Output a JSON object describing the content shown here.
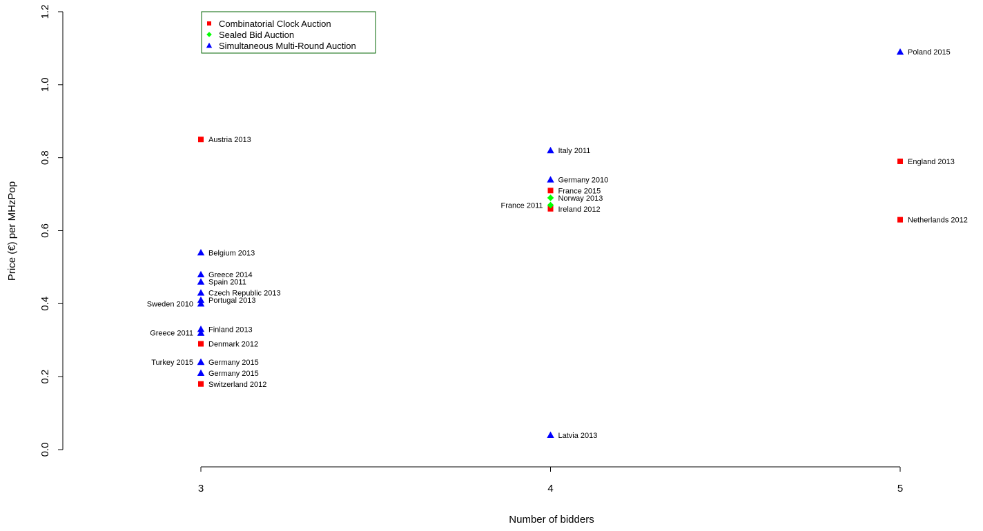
{
  "chart_data": {
    "type": "scatter",
    "xlabel": "Number of bidders",
    "ylabel": "Price (€) per MHzPop",
    "xlim": [
      3,
      5
    ],
    "ylim": [
      0,
      1.2
    ],
    "x_ticks": [
      "3",
      "4",
      "5"
    ],
    "y_ticks": [
      "0.0",
      "0.2",
      "0.4",
      "0.6",
      "0.8",
      "1.0",
      "1.2"
    ],
    "grid": false,
    "legend_position": "top-left",
    "series": [
      {
        "name": "Combinatorial Clock Auction",
        "marker": "square",
        "color": "#ff0000",
        "points": [
          {
            "x": 3,
            "y": 0.85,
            "label": "Austria 2013",
            "label_side": "right"
          },
          {
            "x": 3,
            "y": 0.29,
            "label": "Denmark 2012",
            "label_side": "right"
          },
          {
            "x": 3,
            "y": 0.18,
            "label": "Switzerland 2012",
            "label_side": "right"
          },
          {
            "x": 4,
            "y": 0.71,
            "label": "France 2015",
            "label_side": "right"
          },
          {
            "x": 4,
            "y": 0.66,
            "label": "Ireland 2012",
            "label_side": "right"
          },
          {
            "x": 5,
            "y": 0.79,
            "label": "England 2013",
            "label_side": "right"
          },
          {
            "x": 5,
            "y": 0.63,
            "label": "Netherlands 2012",
            "label_side": "right"
          }
        ]
      },
      {
        "name": "Sealed Bid Auction",
        "marker": "diamond",
        "color": "#00ff00",
        "points": [
          {
            "x": 4,
            "y": 0.69,
            "label": "Norway 2013",
            "label_side": "right"
          },
          {
            "x": 4,
            "y": 0.67,
            "label": "France 2011",
            "label_side": "left"
          }
        ]
      },
      {
        "name": "Simultaneous Multi-Round Auction",
        "marker": "triangle",
        "color": "#0000ff",
        "points": [
          {
            "x": 3,
            "y": 0.54,
            "label": "Belgium 2013",
            "label_side": "right"
          },
          {
            "x": 3,
            "y": 0.48,
            "label": "Greece 2014",
            "label_side": "right"
          },
          {
            "x": 3,
            "y": 0.46,
            "label": "Spain 2011",
            "label_side": "right"
          },
          {
            "x": 3,
            "y": 0.43,
            "label": "Czech Republic 2013",
            "label_side": "right"
          },
          {
            "x": 3,
            "y": 0.41,
            "label": "Portugal 2013",
            "label_side": "right"
          },
          {
            "x": 3,
            "y": 0.4,
            "label": "Sweden 2010",
            "label_side": "left"
          },
          {
            "x": 3,
            "y": 0.33,
            "label": "Finland 2013",
            "label_side": "right"
          },
          {
            "x": 3,
            "y": 0.32,
            "label": "Greece 2011",
            "label_side": "left"
          },
          {
            "x": 3,
            "y": 0.24,
            "label": "Germany 2015",
            "label_side": "right"
          },
          {
            "x": 3,
            "y": 0.24,
            "label": "Turkey 2015",
            "label_side": "left"
          },
          {
            "x": 3,
            "y": 0.21,
            "label": "Germany 2015",
            "label_side": "right"
          },
          {
            "x": 4,
            "y": 0.82,
            "label": "Italy 2011",
            "label_side": "right"
          },
          {
            "x": 4,
            "y": 0.74,
            "label": "Germany 2010",
            "label_side": "right"
          },
          {
            "x": 4,
            "y": 0.04,
            "label": "Latvia 2013",
            "label_side": "right"
          },
          {
            "x": 5,
            "y": 1.09,
            "label": "Poland 2015",
            "label_side": "right"
          }
        ]
      }
    ]
  }
}
